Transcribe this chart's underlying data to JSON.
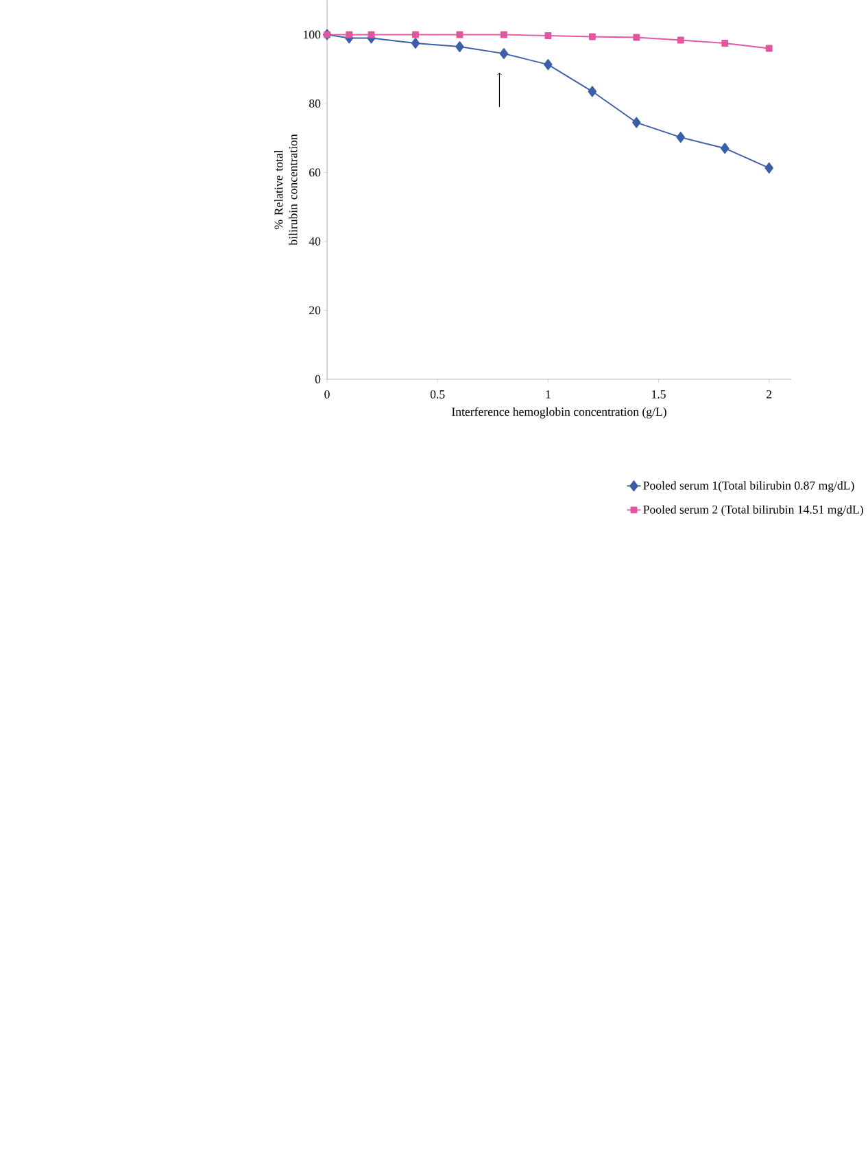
{
  "chart_data": {
    "type": "line",
    "xlabel": "Interference hemoglobin concentration (g/L)",
    "ylabel": "% Relative total bilirubin concentration",
    "x": [
      0,
      0.1,
      0.2,
      0.4,
      0.6,
      0.8,
      1.0,
      1.2,
      1.4,
      1.6,
      1.8,
      2.0
    ],
    "series": [
      {
        "name": "Pooled serum 1(Total bilirubin 0.87 mg/dL)",
        "color": "#3c5ea8",
        "marker": "diamond",
        "values": [
          100,
          99,
          99,
          97.5,
          96.5,
          94.5,
          91.3,
          83.5,
          74.5,
          70.2,
          67,
          61.3
        ]
      },
      {
        "name": "Pooled serum 2 (Total bilirubin 14.51 mg/dL)",
        "color": "#e3559f",
        "marker": "square",
        "values": [
          100,
          100,
          100,
          100,
          100,
          100,
          99.7,
          99.4,
          99.2,
          98.4,
          97.5,
          96
        ]
      }
    ],
    "xlim": [
      0,
      2.1
    ],
    "ylim": [
      0,
      110
    ],
    "xticks": [
      0,
      0.5,
      1,
      1.5,
      2
    ],
    "yticks": [
      0,
      20,
      40,
      60,
      80,
      100
    ],
    "grid": false,
    "legend": "bottom right",
    "line_style": "solid"
  }
}
